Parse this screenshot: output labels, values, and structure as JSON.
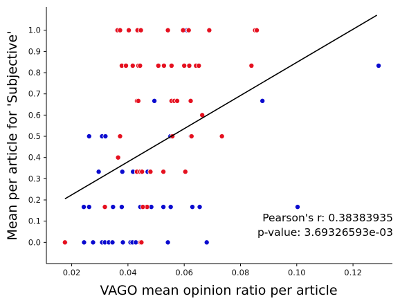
{
  "chart_data": {
    "type": "scatter",
    "xlabel": "VAGO mean opinion ratio per article",
    "ylabel": "Mean per article for 'Subjective'",
    "xlim": [
      0.011,
      0.134
    ],
    "ylim": [
      -0.1,
      1.11
    ],
    "x_ticks": [
      "0.02",
      "0.04",
      "0.06",
      "0.08",
      "0.10",
      "0.12"
    ],
    "y_ticks": [
      "0.0",
      "0.1",
      "0.2",
      "0.3",
      "0.4",
      "0.5",
      "0.6",
      "0.7",
      "0.8",
      "0.9",
      "1.0"
    ],
    "grid": false,
    "colors": {
      "blue": "#0b0bcf",
      "red": "#e5101f",
      "line": "#000000"
    },
    "regression_line": {
      "x": [
        0.0176,
        0.1285
      ],
      "y": [
        0.205,
        1.071
      ]
    },
    "annotations": [
      "Pearson's r: 0.38383935",
      "p-value: 3.69326593e-03"
    ],
    "series": [
      {
        "color": "blue",
        "points": [
          [
            0.0178,
            0.0
          ],
          [
            0.0244,
            0.0
          ],
          [
            0.0276,
            0.0
          ],
          [
            0.0308,
            0.0
          ],
          [
            0.0318,
            0.0
          ],
          [
            0.0332,
            0.0
          ],
          [
            0.0345,
            0.0
          ],
          [
            0.0382,
            0.0
          ],
          [
            0.0409,
            0.0
          ],
          [
            0.0416,
            0.0
          ],
          [
            0.0428,
            0.0
          ],
          [
            0.0542,
            0.0
          ],
          [
            0.068,
            0.0
          ],
          [
            0.0243,
            0.167
          ],
          [
            0.0262,
            0.167
          ],
          [
            0.0318,
            0.167
          ],
          [
            0.0347,
            0.167
          ],
          [
            0.0378,
            0.167
          ],
          [
            0.0444,
            0.167
          ],
          [
            0.0468,
            0.167
          ],
          [
            0.0483,
            0.167
          ],
          [
            0.0526,
            0.167
          ],
          [
            0.0552,
            0.167
          ],
          [
            0.0629,
            0.167
          ],
          [
            0.0655,
            0.167
          ],
          [
            0.1003,
            0.167
          ],
          [
            0.0296,
            0.333
          ],
          [
            0.038,
            0.333
          ],
          [
            0.0418,
            0.333
          ],
          [
            0.0443,
            0.333
          ],
          [
            0.047,
            0.333
          ],
          [
            0.0262,
            0.5
          ],
          [
            0.0308,
            0.5
          ],
          [
            0.032,
            0.5
          ],
          [
            0.0551,
            0.5
          ],
          [
            0.0624,
            0.5
          ],
          [
            0.0494,
            0.667
          ],
          [
            0.0878,
            0.667
          ],
          [
            0.1291,
            0.833
          ],
          [
            0.0361,
            1.0
          ],
          [
            0.0445,
            1.0
          ],
          [
            0.061,
            1.0
          ]
        ]
      },
      {
        "color": "red",
        "points": [
          [
            0.0176,
            0.0
          ],
          [
            0.0444,
            0.0
          ],
          [
            0.0448,
            0.0
          ],
          [
            0.0318,
            0.167
          ],
          [
            0.0468,
            0.167
          ],
          [
            0.0453,
            0.167
          ],
          [
            0.0365,
            0.4
          ],
          [
            0.0432,
            0.333
          ],
          [
            0.0443,
            0.333
          ],
          [
            0.045,
            0.333
          ],
          [
            0.048,
            0.333
          ],
          [
            0.0526,
            0.333
          ],
          [
            0.0604,
            0.333
          ],
          [
            0.0372,
            0.5
          ],
          [
            0.0558,
            0.5
          ],
          [
            0.0626,
            0.5
          ],
          [
            0.0734,
            0.5
          ],
          [
            0.0664,
            0.6
          ],
          [
            0.0432,
            0.667
          ],
          [
            0.0437,
            0.667
          ],
          [
            0.0555,
            0.667
          ],
          [
            0.0565,
            0.667
          ],
          [
            0.0575,
            0.667
          ],
          [
            0.0623,
            0.667
          ],
          [
            0.0378,
            0.833
          ],
          [
            0.0393,
            0.833
          ],
          [
            0.0417,
            0.833
          ],
          [
            0.0437,
            0.833
          ],
          [
            0.0443,
            0.833
          ],
          [
            0.0508,
            0.833
          ],
          [
            0.0528,
            0.833
          ],
          [
            0.0555,
            0.833
          ],
          [
            0.06,
            0.833
          ],
          [
            0.0618,
            0.833
          ],
          [
            0.0642,
            0.833
          ],
          [
            0.0652,
            0.833
          ],
          [
            0.0839,
            0.833
          ],
          [
            0.0363,
            1.0
          ],
          [
            0.0372,
            1.0
          ],
          [
            0.0403,
            1.0
          ],
          [
            0.0434,
            1.0
          ],
          [
            0.0446,
            1.0
          ],
          [
            0.0542,
            1.0
          ],
          [
            0.0596,
            1.0
          ],
          [
            0.0616,
            1.0
          ],
          [
            0.0689,
            1.0
          ],
          [
            0.0852,
            1.0
          ],
          [
            0.0858,
            1.0
          ]
        ]
      }
    ]
  }
}
